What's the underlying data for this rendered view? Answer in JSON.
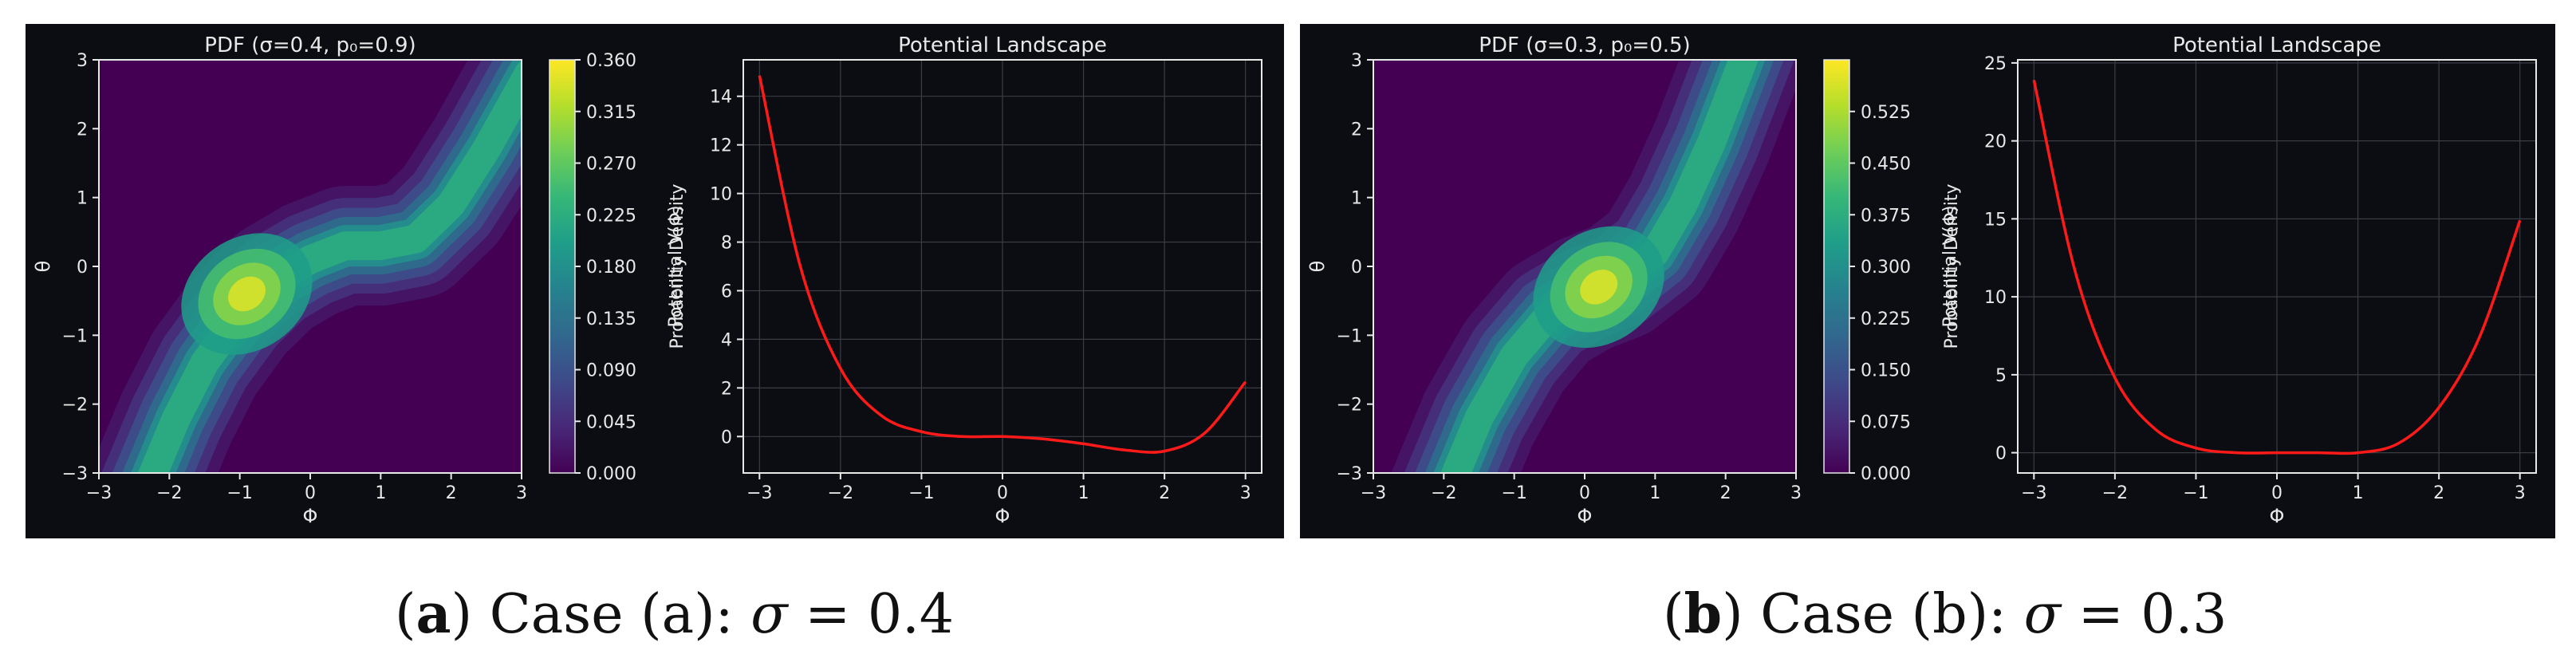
{
  "chart_data": [
    {
      "type": "heatmap",
      "panel": "a",
      "title": "PDF (σ=0.4, p₀=0.9)",
      "xlabel": "Φ",
      "ylabel": "θ",
      "xlim": [
        -3,
        3
      ],
      "ylim": [
        -3,
        3
      ],
      "xticks": [
        "−3",
        "−2",
        "−1",
        "0",
        "1",
        "2",
        "3"
      ],
      "yticks": [
        "−3",
        "−2",
        "−1",
        "0",
        "1",
        "2",
        "3"
      ],
      "colorbar_label": "Probability Density",
      "colorbar_range": [
        0,
        0.36
      ],
      "colorbar_ticks": [
        "0.000",
        "0.045",
        "0.090",
        "0.135",
        "0.180",
        "0.225",
        "0.270",
        "0.315",
        "0.360"
      ],
      "colormap": "viridis",
      "density_peak": {
        "x": -0.9,
        "y": -0.4,
        "value": 0.36
      },
      "ridge_curve": "θ ≈ 0.0933 Φ³ + 0.0267 Φ² − 0.0167 Φ − 0.0267 … (curved band from (−2.2,−3) through (0,0) to (3,2.5))"
    },
    {
      "type": "line",
      "panel": "a",
      "title": "Potential Landscape",
      "xlabel": "Φ",
      "ylabel": "Potential V(Φ)",
      "xlim": [
        -3.2,
        3.2
      ],
      "ylim": [
        -1.5,
        15.5
      ],
      "xticks": [
        "−3",
        "−2",
        "−1",
        "0",
        "1",
        "2",
        "3"
      ],
      "yticks": [
        "0",
        "2",
        "4",
        "6",
        "8",
        "10",
        "12",
        "14"
      ],
      "grid": true,
      "series": [
        {
          "name": "",
          "color": "#ff1a1a",
          "x": [
            -3,
            -2.5,
            -2,
            -1.5,
            -1,
            -0.5,
            0,
            0.5,
            1,
            1.5,
            2,
            2.5,
            3
          ],
          "y": [
            14.85,
            7.05,
            2.8,
            0.87,
            0.2,
            0.0,
            0.0,
            -0.1,
            -0.3,
            -0.55,
            -0.6,
            0.15,
            2.25
          ]
        }
      ]
    },
    {
      "type": "heatmap",
      "panel": "b",
      "title": "PDF (σ=0.3, p₀=0.5)",
      "xlabel": "Φ",
      "ylabel": "θ",
      "xlim": [
        -3,
        3
      ],
      "ylim": [
        -3,
        3
      ],
      "xticks": [
        "−3",
        "−2",
        "−1",
        "0",
        "1",
        "2",
        "3"
      ],
      "yticks": [
        "−3",
        "−2",
        "−1",
        "0",
        "1",
        "2",
        "3"
      ],
      "colorbar_label": "Probability Density",
      "colorbar_range": [
        0,
        0.6
      ],
      "colorbar_ticks": [
        "0.000",
        "0.075",
        "0.150",
        "0.225",
        "0.300",
        "0.375",
        "0.450",
        "0.525"
      ],
      "colormap": "viridis",
      "density_peak": {
        "x": 0.2,
        "y": -0.3,
        "value": 0.6
      },
      "ridge_curve": "curved band from (−1.8,−3) through (0.2,−0.3) to (2.3,3)"
    },
    {
      "type": "line",
      "panel": "b",
      "title": "Potential Landscape",
      "xlabel": "Φ",
      "ylabel": "Potential V(Φ)",
      "xlim": [
        -3.2,
        3.2
      ],
      "ylim": [
        -1.3,
        25.2
      ],
      "xticks": [
        "−3",
        "−2",
        "−1",
        "0",
        "1",
        "2",
        "3"
      ],
      "yticks": [
        "0",
        "5",
        "10",
        "15",
        "20",
        "25"
      ],
      "grid": true,
      "series": [
        {
          "name": "",
          "color": "#ff1a1a",
          "x": [
            -3,
            -2.5,
            -2,
            -1.5,
            -1,
            -0.5,
            0,
            0.5,
            1,
            1.5,
            2,
            2.5,
            3
          ],
          "y": [
            23.9,
            11.8,
            4.8,
            1.5,
            0.3,
            0.0,
            0.0,
            0.0,
            0.0,
            0.6,
            2.9,
            7.4,
            14.9
          ]
        }
      ]
    }
  ],
  "captions": [
    {
      "label": "a",
      "text": ") Case (a): ",
      "sym": "σ",
      "eq": " = 0.4"
    },
    {
      "label": "b",
      "text": ") Case (b): ",
      "sym": "σ",
      "eq": " = 0.3"
    }
  ]
}
